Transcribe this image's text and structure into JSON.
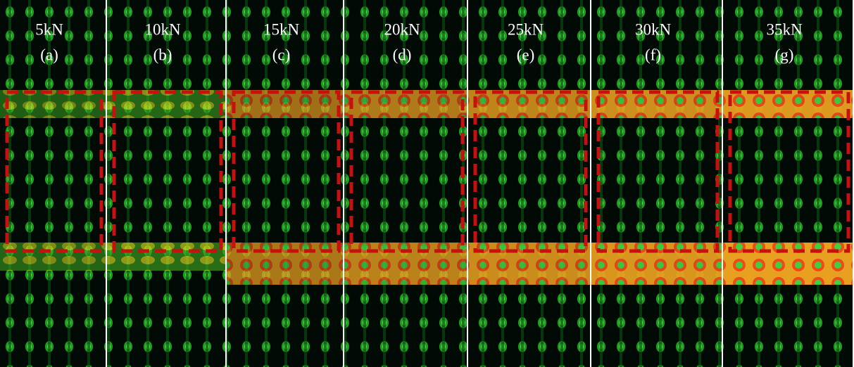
{
  "panels": [
    {
      "load": "5kN",
      "label": "(a)"
    },
    {
      "load": "10kN",
      "label": "(b)"
    },
    {
      "load": "15kN",
      "label": "(c)"
    },
    {
      "load": "20kN",
      "label": "(d)"
    },
    {
      "load": "25kN",
      "label": "(e)"
    },
    {
      "load": "30kN",
      "label": "(f)"
    },
    {
      "load": "35kN",
      "label": "(g)"
    }
  ]
}
